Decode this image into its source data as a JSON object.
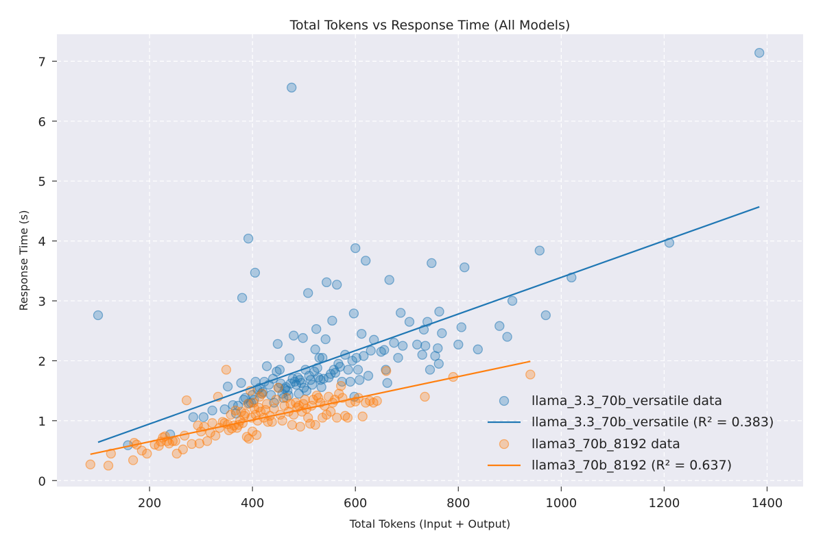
{
  "chart_data": {
    "type": "scatter",
    "title": "Total Tokens vs Response Time (All Models)",
    "xlabel": "Total Tokens (Input + Output)",
    "ylabel": "Response Time (s)",
    "xlim": [
      20,
      1470
    ],
    "ylim": [
      -0.1,
      7.45
    ],
    "xticks": [
      200,
      400,
      600,
      800,
      1000,
      1200,
      1400
    ],
    "yticks": [
      0,
      1,
      2,
      3,
      4,
      5,
      6,
      7
    ],
    "grid": true,
    "legend_position": "bottom-right",
    "series": [
      {
        "name": "llama_3.3_70b_versatile data",
        "kind": "scatter",
        "color": "#1f77b4",
        "points": [
          [
            100,
            2.76
          ],
          [
            158,
            0.59
          ],
          [
            240,
            0.77
          ],
          [
            285,
            1.06
          ],
          [
            305,
            1.06
          ],
          [
            322,
            1.17
          ],
          [
            346,
            1.19
          ],
          [
            352,
            1.57
          ],
          [
            362,
            1.26
          ],
          [
            368,
            1.12
          ],
          [
            372,
            1.25
          ],
          [
            378,
            1.63
          ],
          [
            380,
            3.05
          ],
          [
            383,
            1.35
          ],
          [
            386,
            1.38
          ],
          [
            392,
            4.04
          ],
          [
            393,
            1.29
          ],
          [
            397,
            1.3
          ],
          [
            400,
            1.43
          ],
          [
            403,
            1.35
          ],
          [
            405,
            3.47
          ],
          [
            406,
            1.65
          ],
          [
            410,
            1.52
          ],
          [
            414,
            1.55
          ],
          [
            418,
            1.45
          ],
          [
            420,
            1.48
          ],
          [
            423,
            1.65
          ],
          [
            428,
            1.91
          ],
          [
            432,
            1.6
          ],
          [
            436,
            1.43
          ],
          [
            440,
            1.7
          ],
          [
            442,
            1.3
          ],
          [
            447,
            1.82
          ],
          [
            449,
            2.28
          ],
          [
            451,
            1.55
          ],
          [
            453,
            1.85
          ],
          [
            455,
            1.62
          ],
          [
            458,
            1.45
          ],
          [
            460,
            1.38
          ],
          [
            463,
            1.53
          ],
          [
            465,
            1.56
          ],
          [
            468,
            1.5
          ],
          [
            470,
            1.42
          ],
          [
            472,
            2.04
          ],
          [
            474,
            1.62
          ],
          [
            476,
            6.56
          ],
          [
            478,
            1.7
          ],
          [
            480,
            2.42
          ],
          [
            482,
            1.65
          ],
          [
            485,
            1.6
          ],
          [
            488,
            1.72
          ],
          [
            490,
            1.45
          ],
          [
            492,
            1.68
          ],
          [
            495,
            1.63
          ],
          [
            498,
            2.38
          ],
          [
            500,
            1.55
          ],
          [
            503,
            1.85
          ],
          [
            505,
            1.5
          ],
          [
            508,
            3.13
          ],
          [
            510,
            1.75
          ],
          [
            513,
            1.68
          ],
          [
            516,
            1.6
          ],
          [
            520,
            1.82
          ],
          [
            522,
            2.19
          ],
          [
            524,
            2.53
          ],
          [
            526,
            1.88
          ],
          [
            528,
            1.72
          ],
          [
            530,
            2.05
          ],
          [
            532,
            1.68
          ],
          [
            534,
            1.56
          ],
          [
            536,
            2.05
          ],
          [
            538,
            1.7
          ],
          [
            542,
            2.36
          ],
          [
            544,
            3.31
          ],
          [
            548,
            1.72
          ],
          [
            552,
            1.78
          ],
          [
            555,
            2.67
          ],
          [
            558,
            1.85
          ],
          [
            561,
            1.8
          ],
          [
            564,
            3.27
          ],
          [
            567,
            1.95
          ],
          [
            570,
            1.9
          ],
          [
            574,
            1.65
          ],
          [
            580,
            2.1
          ],
          [
            586,
            1.85
          ],
          [
            590,
            1.65
          ],
          [
            594,
            2.0
          ],
          [
            597,
            2.79
          ],
          [
            598,
            1.4
          ],
          [
            600,
            3.88
          ],
          [
            602,
            2.05
          ],
          [
            605,
            1.85
          ],
          [
            608,
            1.68
          ],
          [
            612,
            2.45
          ],
          [
            616,
            2.08
          ],
          [
            620,
            3.67
          ],
          [
            625,
            1.75
          ],
          [
            630,
            2.17
          ],
          [
            636,
            2.35
          ],
          [
            650,
            2.15
          ],
          [
            656,
            2.18
          ],
          [
            659,
            1.85
          ],
          [
            662,
            1.63
          ],
          [
            666,
            3.35
          ],
          [
            675,
            2.3
          ],
          [
            683,
            2.05
          ],
          [
            688,
            2.8
          ],
          [
            692,
            2.25
          ],
          [
            705,
            2.65
          ],
          [
            720,
            2.27
          ],
          [
            730,
            2.1
          ],
          [
            733,
            2.52
          ],
          [
            736,
            2.25
          ],
          [
            740,
            2.65
          ],
          [
            745,
            1.85
          ],
          [
            748,
            3.63
          ],
          [
            755,
            2.08
          ],
          [
            760,
            2.21
          ],
          [
            762,
            1.95
          ],
          [
            763,
            2.82
          ],
          [
            768,
            2.46
          ],
          [
            800,
            2.27
          ],
          [
            806,
            2.56
          ],
          [
            812,
            3.56
          ],
          [
            838,
            2.19
          ],
          [
            880,
            2.58
          ],
          [
            895,
            2.4
          ],
          [
            905,
            3.0
          ],
          [
            958,
            3.84
          ],
          [
            970,
            2.76
          ],
          [
            1020,
            3.39
          ],
          [
            1210,
            3.97
          ],
          [
            1385,
            7.14
          ]
        ]
      },
      {
        "name": "llama_3.3_70b_versatile (R² = 0.383)",
        "kind": "line",
        "color": "#1f77b4",
        "points": [
          [
            100,
            0.64
          ],
          [
            1385,
            4.57
          ]
        ]
      },
      {
        "name": "llama3_70b_8192 data",
        "kind": "scatter",
        "color": "#ff7f0e",
        "points": [
          [
            85,
            0.27
          ],
          [
            120,
            0.25
          ],
          [
            125,
            0.45
          ],
          [
            168,
            0.34
          ],
          [
            170,
            0.63
          ],
          [
            175,
            0.6
          ],
          [
            185,
            0.5
          ],
          [
            195,
            0.45
          ],
          [
            210,
            0.6
          ],
          [
            218,
            0.58
          ],
          [
            222,
            0.65
          ],
          [
            226,
            0.72
          ],
          [
            230,
            0.74
          ],
          [
            234,
            0.66
          ],
          [
            238,
            0.62
          ],
          [
            245,
            0.66
          ],
          [
            250,
            0.66
          ],
          [
            253,
            0.45
          ],
          [
            265,
            0.52
          ],
          [
            268,
            0.75
          ],
          [
            272,
            1.34
          ],
          [
            282,
            0.61
          ],
          [
            294,
            0.92
          ],
          [
            297,
            0.62
          ],
          [
            300,
            0.82
          ],
          [
            306,
            0.9
          ],
          [
            312,
            0.66
          ],
          [
            318,
            0.8
          ],
          [
            322,
            0.96
          ],
          [
            328,
            0.75
          ],
          [
            333,
            1.4
          ],
          [
            336,
            0.88
          ],
          [
            342,
            0.98
          ],
          [
            346,
            0.96
          ],
          [
            349,
            1.85
          ],
          [
            352,
            0.94
          ],
          [
            354,
            0.84
          ],
          [
            358,
            1.1
          ],
          [
            360,
            0.87
          ],
          [
            364,
            0.92
          ],
          [
            367,
            1.17
          ],
          [
            370,
            0.88
          ],
          [
            373,
            0.93
          ],
          [
            376,
            1.0
          ],
          [
            378,
            1.15
          ],
          [
            381,
            0.96
          ],
          [
            384,
            1.08
          ],
          [
            386,
            1.12
          ],
          [
            389,
            0.73
          ],
          [
            391,
            1.28
          ],
          [
            393,
            0.7
          ],
          [
            396,
            1.5
          ],
          [
            398,
            1.05
          ],
          [
            400,
            0.82
          ],
          [
            402,
            1.3
          ],
          [
            404,
            1.2
          ],
          [
            406,
            1.1
          ],
          [
            408,
            0.76
          ],
          [
            410,
            1.0
          ],
          [
            412,
            1.22
          ],
          [
            414,
            1.4
          ],
          [
            416,
            1.15
          ],
          [
            419,
            1.45
          ],
          [
            422,
            1.05
          ],
          [
            425,
            1.18
          ],
          [
            428,
            1.28
          ],
          [
            430,
            0.98
          ],
          [
            434,
            1.08
          ],
          [
            438,
            0.98
          ],
          [
            442,
            1.2
          ],
          [
            446,
            1.35
          ],
          [
            450,
            1.55
          ],
          [
            454,
            1.1
          ],
          [
            458,
            1.0
          ],
          [
            462,
            1.25
          ],
          [
            466,
            1.38
          ],
          [
            470,
            1.15
          ],
          [
            474,
            1.28
          ],
          [
            477,
            0.93
          ],
          [
            480,
            1.1
          ],
          [
            484,
            1.3
          ],
          [
            487,
            1.22
          ],
          [
            490,
            1.25
          ],
          [
            493,
            0.9
          ],
          [
            496,
            1.15
          ],
          [
            499,
            1.28
          ],
          [
            502,
            1.35
          ],
          [
            505,
            1.2
          ],
          [
            508,
            1.05
          ],
          [
            512,
            0.95
          ],
          [
            515,
            1.25
          ],
          [
            518,
            1.35
          ],
          [
            522,
            0.93
          ],
          [
            525,
            1.42
          ],
          [
            528,
            1.38
          ],
          [
            532,
            1.3
          ],
          [
            536,
            1.05
          ],
          [
            540,
            1.25
          ],
          [
            544,
            1.1
          ],
          [
            548,
            1.4
          ],
          [
            552,
            1.15
          ],
          [
            556,
            1.3
          ],
          [
            560,
            1.35
          ],
          [
            564,
            1.05
          ],
          [
            568,
            1.45
          ],
          [
            572,
            1.58
          ],
          [
            575,
            1.38
          ],
          [
            580,
            1.08
          ],
          [
            585,
            1.05
          ],
          [
            590,
            1.3
          ],
          [
            600,
            1.32
          ],
          [
            606,
            1.38
          ],
          [
            614,
            1.07
          ],
          [
            620,
            1.3
          ],
          [
            628,
            1.33
          ],
          [
            635,
            1.3
          ],
          [
            642,
            1.33
          ],
          [
            660,
            1.83
          ],
          [
            735,
            1.4
          ],
          [
            790,
            1.73
          ],
          [
            940,
            1.77
          ]
        ]
      },
      {
        "name": "llama3_70b_8192 (R² = 0.637)",
        "kind": "line",
        "color": "#ff7f0e",
        "points": [
          [
            85,
            0.44
          ],
          [
            940,
            1.99
          ]
        ]
      }
    ]
  }
}
